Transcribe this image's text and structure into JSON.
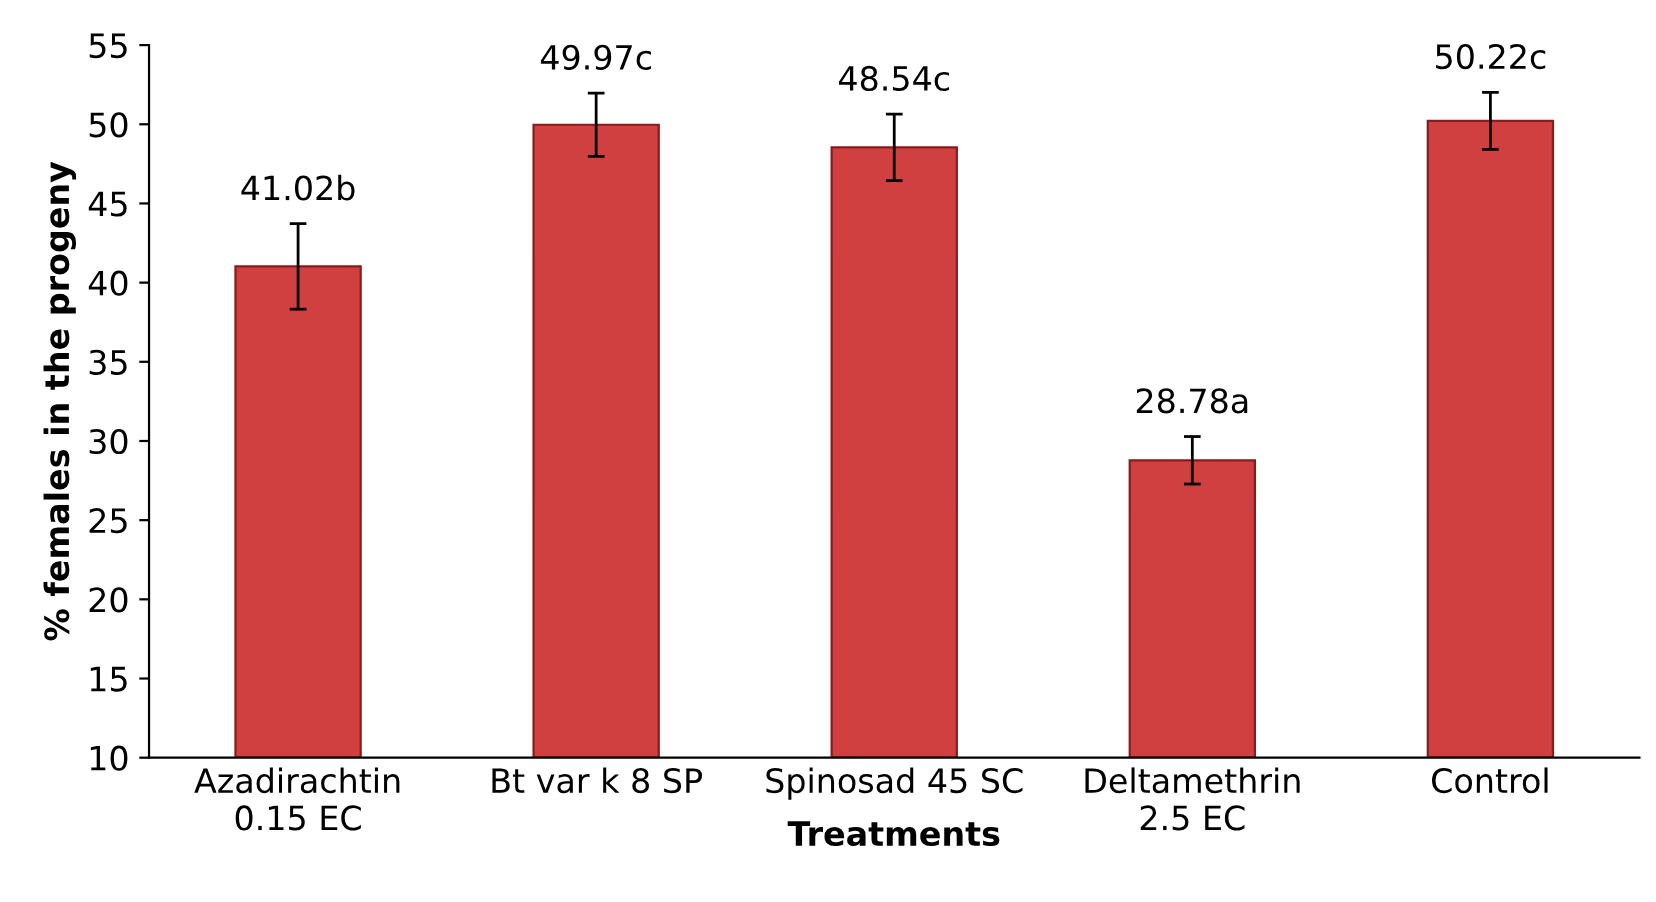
{
  "chart_data": {
    "type": "bar",
    "xlabel": "Treatments",
    "ylabel": "% females in the progeny",
    "categories": [
      "Azadirachtin\n0.15 EC",
      "Bt var k 8 SP",
      "Spinosad 45 SC",
      "Deltamethrin\n2.5 EC",
      "Control"
    ],
    "values": [
      41.02,
      49.97,
      48.54,
      28.78,
      50.22
    ],
    "errors": [
      2.7,
      2.0,
      2.1,
      1.5,
      1.8
    ],
    "value_labels": [
      "41.02b",
      "49.97c",
      "48.54c",
      "28.78a",
      "50.22c"
    ],
    "color": "#d04040",
    "ylim": [
      10,
      55
    ],
    "yticks": [
      10,
      15,
      20,
      25,
      30,
      35,
      40,
      45,
      50,
      55
    ],
    "grid": false,
    "legend": false
  }
}
